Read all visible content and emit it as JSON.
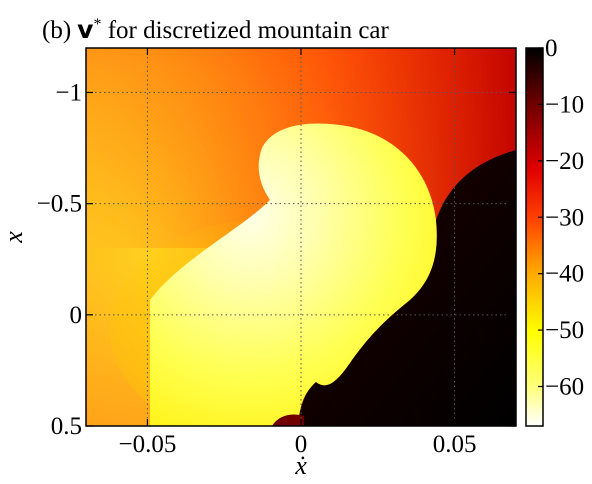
{
  "chart_data": {
    "type": "heatmap",
    "panel_label": "(b)",
    "title_bold": "v",
    "title_sup": "*",
    "title_rest": " for discretized mountain car",
    "xlabel": "ẋ",
    "ylabel": "x",
    "xlim": [
      -0.07,
      0.07
    ],
    "ylim": [
      -1.2,
      0.5
    ],
    "y_reversed": true,
    "grid": true,
    "x_ticks": [
      {
        "value": -0.05,
        "label": "−0.05"
      },
      {
        "value": 0,
        "label": "0"
      },
      {
        "value": 0.05,
        "label": "0.05"
      }
    ],
    "y_ticks": [
      {
        "value": -1,
        "label": "−1"
      },
      {
        "value": -0.5,
        "label": "−0.5"
      },
      {
        "value": 0,
        "label": "0"
      },
      {
        "value": 0.5,
        "label": "0.5"
      }
    ],
    "colorbar": {
      "colormap": "hot",
      "range": [
        -67,
        0
      ],
      "ticks": [
        {
          "value": 0,
          "label": "0"
        },
        {
          "value": -10,
          "label": "−10"
        },
        {
          "value": -20,
          "label": "−20"
        },
        {
          "value": -30,
          "label": "−30"
        },
        {
          "value": -40,
          "label": "−40"
        },
        {
          "value": -50,
          "label": "−50"
        },
        {
          "value": -60,
          "label": "−60"
        }
      ]
    }
  }
}
